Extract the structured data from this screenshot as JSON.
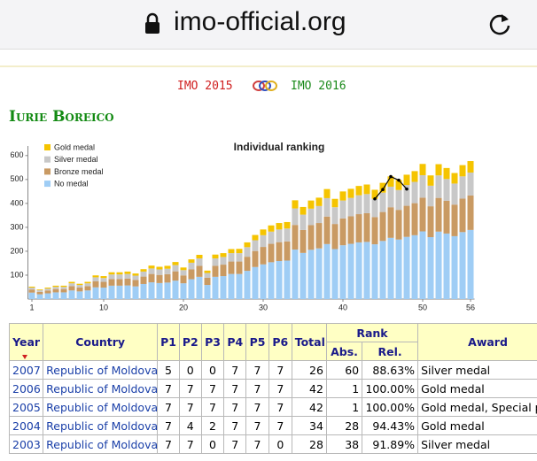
{
  "browser": {
    "url": "imo-official.org"
  },
  "nav": {
    "prev": "IMO 2015",
    "next": "IMO 2016"
  },
  "name": "Iurie Boreico",
  "chart_data": {
    "type": "bar",
    "stacked": true,
    "title": "Individual ranking",
    "x": [
      1,
      2,
      3,
      4,
      5,
      6,
      7,
      8,
      9,
      10,
      11,
      12,
      13,
      14,
      15,
      16,
      17,
      18,
      19,
      20,
      21,
      22,
      23,
      24,
      25,
      26,
      27,
      28,
      29,
      30,
      31,
      32,
      33,
      34,
      35,
      36,
      37,
      38,
      39,
      40,
      41,
      42,
      43,
      44,
      45,
      46,
      47,
      48,
      49,
      50,
      51,
      52,
      53,
      54,
      55,
      56
    ],
    "series": [
      {
        "name": "Gold medal",
        "color": "#f5c400",
        "values": [
          4,
          3,
          4,
          5,
          5,
          6,
          5,
          6,
          8,
          8,
          9,
          9,
          10,
          9,
          10,
          12,
          11,
          12,
          13,
          11,
          14,
          15,
          10,
          16,
          16,
          17,
          18,
          20,
          22,
          24,
          26,
          27,
          27,
          34,
          32,
          34,
          35,
          38,
          35,
          38,
          38,
          39,
          40,
          38,
          41,
          43,
          42,
          43,
          45,
          47,
          43,
          47,
          46,
          44,
          47,
          48
        ]
      },
      {
        "name": "Silver medal",
        "color": "#c8c8c8",
        "values": [
          8,
          7,
          8,
          9,
          9,
          12,
          11,
          12,
          17,
          16,
          19,
          19,
          19,
          18,
          21,
          23,
          23,
          23,
          26,
          22,
          28,
          31,
          20,
          31,
          32,
          35,
          35,
          40,
          45,
          49,
          51,
          53,
          54,
          69,
          64,
          69,
          71,
          77,
          70,
          75,
          77,
          79,
          80,
          76,
          81,
          86,
          83,
          87,
          89,
          94,
          86,
          94,
          91,
          88,
          93,
          96
        ]
      },
      {
        "name": "Bronze medal",
        "color": "#c99a63",
        "values": [
          13,
          10,
          12,
          14,
          14,
          18,
          16,
          18,
          25,
          24,
          28,
          28,
          29,
          27,
          31,
          35,
          34,
          35,
          39,
          33,
          41,
          46,
          30,
          46,
          48,
          52,
          52,
          59,
          67,
          73,
          77,
          79,
          80,
          103,
          96,
          103,
          106,
          115,
          105,
          112,
          115,
          118,
          120,
          114,
          121,
          128,
          124,
          130,
          134,
          141,
          129,
          141,
          137,
          132,
          140,
          144
        ]
      },
      {
        "name": "No medal",
        "color": "#9fcdf5",
        "values": [
          27,
          20,
          24,
          28,
          28,
          36,
          32,
          36,
          49,
          48,
          56,
          56,
          57,
          53,
          63,
          70,
          67,
          69,
          77,
          66,
          83,
          93,
          59,
          93,
          96,
          105,
          105,
          118,
          134,
          145,
          154,
          159,
          161,
          207,
          193,
          206,
          212,
          230,
          209,
          225,
          231,
          237,
          239,
          229,
          243,
          256,
          249,
          260,
          267,
          283,
          259,
          282,
          274,
          263,
          280,
          289
        ]
      }
    ],
    "ranking": {
      "x": [
        44,
        45,
        46,
        47,
        48
      ],
      "values": [
        419,
        458,
        512,
        497,
        460
      ],
      "color": "#000000"
    },
    "xlim": [
      0.5,
      56.5
    ],
    "xticks": [
      1,
      10,
      20,
      30,
      40,
      50,
      56
    ],
    "ylim": [
      0,
      640
    ],
    "yticks": [
      100,
      200,
      300,
      400,
      500,
      600
    ],
    "legend": "top-left",
    "grid": false
  },
  "table": {
    "columns": [
      "Year",
      "Country",
      "P1",
      "P2",
      "P3",
      "P4",
      "P5",
      "P6",
      "Total",
      "Rank",
      "Award"
    ],
    "rank_columns": [
      "Abs.",
      "Rel."
    ],
    "rows": [
      [
        2007,
        "Republic of Moldova",
        5,
        0,
        0,
        7,
        7,
        7,
        26,
        60,
        "88.63%",
        "Silver medal"
      ],
      [
        2006,
        "Republic of Moldova",
        7,
        7,
        7,
        7,
        7,
        7,
        42,
        1,
        "100.00%",
        "Gold medal"
      ],
      [
        2005,
        "Republic of Moldova",
        7,
        7,
        7,
        7,
        7,
        7,
        42,
        1,
        "100.00%",
        "Gold medal, Special prize"
      ],
      [
        2004,
        "Republic of Moldova",
        7,
        4,
        2,
        7,
        7,
        7,
        34,
        28,
        "94.43%",
        "Gold medal"
      ],
      [
        2003,
        "Republic of Moldova",
        7,
        7,
        0,
        7,
        7,
        0,
        28,
        38,
        "91.89%",
        "Silver medal"
      ]
    ]
  }
}
